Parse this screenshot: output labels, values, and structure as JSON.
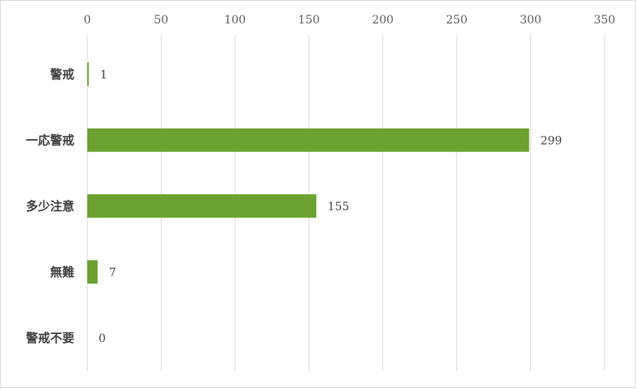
{
  "chart_data": {
    "type": "bar",
    "orientation": "horizontal",
    "categories": [
      "警戒",
      "一応警戒",
      "多少注意",
      "無難",
      "警戒不要"
    ],
    "values": [
      1,
      299,
      155,
      7,
      0
    ],
    "xlim": [
      0,
      350
    ],
    "x_ticks": [
      0,
      50,
      100,
      150,
      200,
      250,
      300,
      350
    ],
    "x_axis_position": "top",
    "grid": true,
    "data_labels": true,
    "legend": "none",
    "title": "",
    "xlabel": "",
    "ylabel": "",
    "bar_color": "#6aa131",
    "grid_color": "#d9d9d9"
  }
}
